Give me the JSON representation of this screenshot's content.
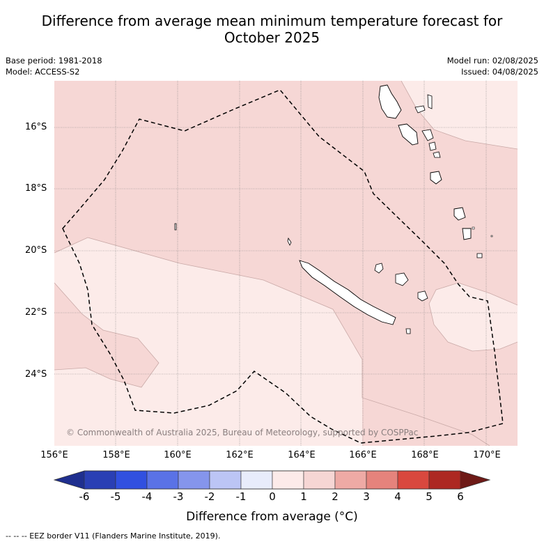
{
  "title_line1": "Difference from average mean minimum temperature forecast for",
  "title_line2": "October 2025",
  "base_period": "Base period: 1981-2018",
  "model": "Model: ACCESS-S2",
  "model_run": "Model run: 02/08/2025",
  "issued": "Issued: 04/08/2025",
  "lat_labels": [
    "16°S",
    "18°S",
    "20°S",
    "22°S",
    "24°S"
  ],
  "lon_labels": [
    "156°E",
    "158°E",
    "160°E",
    "162°E",
    "164°E",
    "166°E",
    "168°E",
    "170°E"
  ],
  "copyright": "© Commonwealth of Australia 2025, Bureau of Meteorology, supported by COSPPac",
  "colorbar": {
    "title": "Difference from average (°C)",
    "ticks": [
      "-6",
      "-5",
      "-4",
      "-3",
      "-2",
      "-1",
      "0",
      "1",
      "2",
      "3",
      "4",
      "5",
      "6"
    ],
    "colors": [
      "#1f2f8f",
      "#2a3fb4",
      "#3150e0",
      "#5a72e6",
      "#8595ec",
      "#bcc5f5",
      "#e8ecfb",
      "#fcebe9",
      "#f6d6d4",
      "#eeaaa5",
      "#e5837c",
      "#d9483e",
      "#ad2822",
      "#6e1a17"
    ]
  },
  "footnote": "--  --  -- EEZ border V11 (Flanders Marine Institute, 2019)."
}
